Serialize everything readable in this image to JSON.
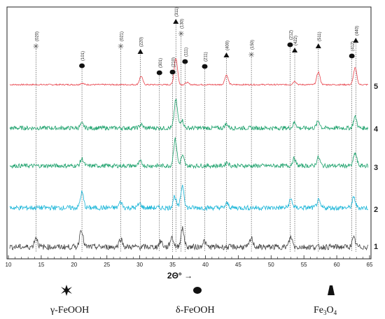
{
  "chart_data": {
    "type": "line",
    "xlabel": "2Θ° →",
    "ylabel": "",
    "xlim": [
      10,
      65
    ],
    "x_ticks": [
      10,
      15,
      20,
      25,
      30,
      35,
      40,
      45,
      50,
      55,
      60,
      65
    ],
    "x_tick_labels": [
      "10",
      "15",
      "20",
      "25",
      "30",
      "35",
      "40",
      "45",
      "50",
      "55",
      "60",
      "65"
    ],
    "grid": false,
    "series": [
      {
        "name": "5",
        "color": "#e8414a",
        "noise": 2,
        "peaks": [
          [
            21.2,
            2
          ],
          [
            30.2,
            12
          ],
          [
            35.5,
            38
          ],
          [
            37.2,
            3
          ],
          [
            43.2,
            14
          ],
          [
            53.6,
            5
          ],
          [
            57.2,
            18
          ],
          [
            62.8,
            24
          ]
        ]
      },
      {
        "name": "4",
        "color": "#1aa06a",
        "noise": 6,
        "peaks": [
          [
            21.2,
            6
          ],
          [
            30.2,
            5
          ],
          [
            35.5,
            40
          ],
          [
            36.4,
            12
          ],
          [
            43.2,
            6
          ],
          [
            53.6,
            8
          ],
          [
            57.2,
            10
          ],
          [
            62.8,
            16
          ]
        ]
      },
      {
        "name": "3",
        "color": "#1aa06a",
        "noise": 6,
        "peaks": [
          [
            21.2,
            10
          ],
          [
            30.1,
            6
          ],
          [
            35.4,
            38
          ],
          [
            36.5,
            14
          ],
          [
            43.3,
            5
          ],
          [
            53.5,
            10
          ],
          [
            57.2,
            12
          ],
          [
            62.8,
            18
          ]
        ]
      },
      {
        "name": "2",
        "color": "#19b5d8",
        "noise": 7,
        "peaks": [
          [
            21.2,
            22
          ],
          [
            27.1,
            8
          ],
          [
            30.0,
            6
          ],
          [
            35.3,
            16
          ],
          [
            36.5,
            32
          ],
          [
            43.3,
            6
          ],
          [
            53.0,
            12
          ],
          [
            57.2,
            10
          ],
          [
            62.6,
            14
          ]
        ]
      },
      {
        "name": "1",
        "color": "#444444",
        "noise": 8,
        "peaks": [
          [
            14.2,
            14
          ],
          [
            21.1,
            26
          ],
          [
            27.1,
            12
          ],
          [
            33.2,
            8
          ],
          [
            34.9,
            14
          ],
          [
            36.5,
            26
          ],
          [
            39.8,
            8
          ],
          [
            47.0,
            12
          ],
          [
            53.0,
            14
          ],
          [
            62.6,
            12
          ]
        ]
      }
    ],
    "annotations": [
      {
        "x": 14.2,
        "label": "(020)",
        "phase": "γ-FeOOH"
      },
      {
        "x": 21.2,
        "label": "(101)",
        "phase": "δ-FeOOH"
      },
      {
        "x": 27.1,
        "label": "(021)",
        "phase": "γ-FeOOH"
      },
      {
        "x": 30.1,
        "label": "(220)",
        "phase": "Fe3O4"
      },
      {
        "x": 33.0,
        "label": "(301)",
        "phase": "δ-FeOOH"
      },
      {
        "x": 35.0,
        "label": "(210)",
        "phase": "δ-FeOOH"
      },
      {
        "x": 35.5,
        "label": "(311)",
        "phase": "Fe3O4"
      },
      {
        "x": 36.3,
        "label": "(130)",
        "phase": "γ-FeOOH"
      },
      {
        "x": 36.9,
        "label": "(111)",
        "phase": "δ-FeOOH"
      },
      {
        "x": 39.9,
        "label": "(211)",
        "phase": "δ-FeOOH"
      },
      {
        "x": 43.2,
        "label": "(400)",
        "phase": "Fe3O4"
      },
      {
        "x": 47.0,
        "label": "(150)",
        "phase": "γ-FeOOH"
      },
      {
        "x": 52.9,
        "label": "(212)",
        "phase": "δ-FeOOH"
      },
      {
        "x": 53.6,
        "label": "(422)",
        "phase": "Fe3O4"
      },
      {
        "x": 57.2,
        "label": "(511)",
        "phase": "Fe3O4"
      },
      {
        "x": 62.3,
        "label": "(412)",
        "phase": "δ-FeOOH"
      },
      {
        "x": 62.9,
        "label": "(440)",
        "phase": "Fe3O4"
      }
    ],
    "legend": [
      {
        "label": "γ-FeOOH",
        "marker": "star-icon"
      },
      {
        "label": "δ-FeOOH",
        "marker": "circle-icon"
      },
      {
        "label": "Fe3O4",
        "marker": "triangle-icon",
        "text_main": "Fe",
        "sub1": "3",
        "text_mid": "O",
        "sub2": "4"
      }
    ],
    "legend_position": "bottom"
  }
}
